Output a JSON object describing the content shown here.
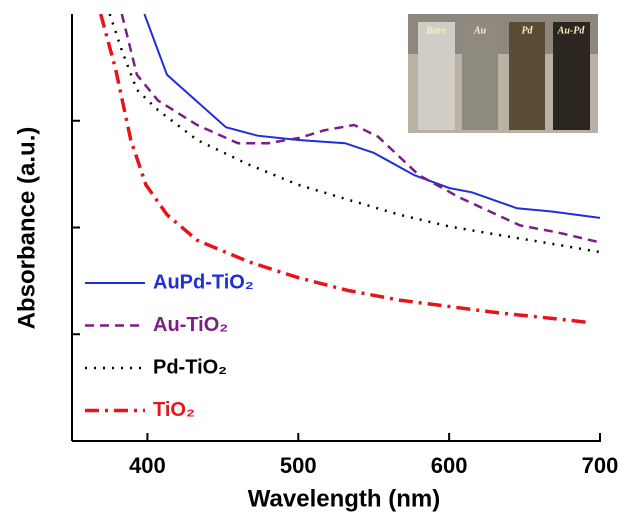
{
  "chart_data": {
    "type": "line",
    "x_label": "Wavelength (nm)",
    "y_label": "Absorbance (a.u.)",
    "xlim": [
      350,
      700
    ],
    "xticks": [
      400,
      500,
      600,
      700
    ],
    "ylim": [
      0,
      4
    ],
    "yticks": [
      1,
      2,
      3
    ],
    "legend": "lower left",
    "series": [
      {
        "name": "AuPd-TiO₂",
        "color": "#1f2fd6",
        "linestyle": "solid",
        "x": [
          398,
          413,
          452,
          473,
          500,
          531,
          550,
          577,
          600,
          615,
          645,
          668,
          700
        ],
        "values": [
          4.0,
          3.43,
          2.94,
          2.86,
          2.82,
          2.79,
          2.7,
          2.49,
          2.37,
          2.33,
          2.18,
          2.15,
          2.09
        ]
      },
      {
        "name": "Au-TiO₂",
        "color": "#7a1f86",
        "linestyle": "dashed",
        "x": [
          383,
          393,
          407,
          433,
          460,
          480,
          501,
          517,
          537,
          553,
          580,
          607,
          627,
          647,
          673,
          700
        ],
        "values": [
          4.0,
          3.43,
          3.19,
          2.96,
          2.79,
          2.79,
          2.84,
          2.91,
          2.96,
          2.85,
          2.49,
          2.28,
          2.15,
          2.02,
          1.95,
          1.86
        ]
      },
      {
        "name": "Pd-TiO₂",
        "color": "#000000",
        "linestyle": "dotted",
        "x": [
          375,
          383,
          393,
          407,
          433,
          467,
          500,
          533,
          567,
          600,
          633,
          667,
          700
        ],
        "values": [
          4.0,
          3.66,
          3.29,
          3.1,
          2.82,
          2.59,
          2.4,
          2.26,
          2.12,
          2.01,
          1.93,
          1.85,
          1.77
        ]
      },
      {
        "name": "TiO₂",
        "color": "#e8141b",
        "linestyle": "dashdot",
        "x": [
          369,
          379,
          389,
          399,
          413,
          433,
          467,
          500,
          533,
          567,
          600,
          633,
          667,
          693
        ],
        "values": [
          4.0,
          3.48,
          2.82,
          2.4,
          2.12,
          1.88,
          1.68,
          1.53,
          1.41,
          1.32,
          1.26,
          1.2,
          1.15,
          1.11
        ]
      }
    ],
    "inset_labels": [
      "Bare",
      "Au",
      "Pd",
      "Au-Pd"
    ]
  }
}
